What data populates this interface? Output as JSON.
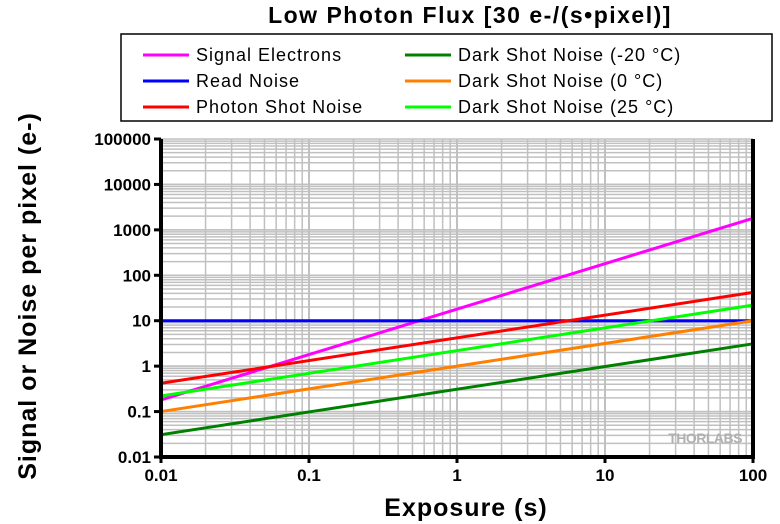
{
  "chart_data": {
    "type": "line",
    "title": "Low Photon Flux [30 e-/(s•pixel)]",
    "xlabel": "Exposure (s)",
    "ylabel": "Signal or Noise per pixel (e-)",
    "xscale": "log",
    "yscale": "log",
    "xlim": [
      0.01,
      100
    ],
    "ylim": [
      0.01,
      100000
    ],
    "xticks": [
      "0.01",
      "0.1",
      "1",
      "10",
      "100"
    ],
    "yticks": [
      "0.01",
      "0.1",
      "1",
      "10",
      "100",
      "1000",
      "10000",
      "100000"
    ],
    "grid": true,
    "legend_position": "top",
    "watermark": "THORLABS",
    "series": [
      {
        "name": "Signal Electrons",
        "color": "#ff00ff",
        "x": [
          0.01,
          100
        ],
        "y": [
          0.18,
          1800
        ]
      },
      {
        "name": "Read Noise",
        "color": "#0000ff",
        "x": [
          0.01,
          100
        ],
        "y": [
          10,
          10
        ]
      },
      {
        "name": "Photon Shot Noise",
        "color": "#ff0000",
        "x": [
          0.01,
          100
        ],
        "y": [
          0.42,
          42
        ]
      },
      {
        "name": "Dark Shot Noise (-20 °C)",
        "color": "#008000",
        "x": [
          0.01,
          100
        ],
        "y": [
          0.031,
          3.1
        ]
      },
      {
        "name": "Dark Shot Noise (0 °C)",
        "color": "#ff8000",
        "x": [
          0.01,
          100
        ],
        "y": [
          0.1,
          10
        ]
      },
      {
        "name": "Dark Shot Noise (25 °C)",
        "color": "#00ff00",
        "x": [
          0.01,
          100
        ],
        "y": [
          0.22,
          22
        ]
      }
    ]
  }
}
